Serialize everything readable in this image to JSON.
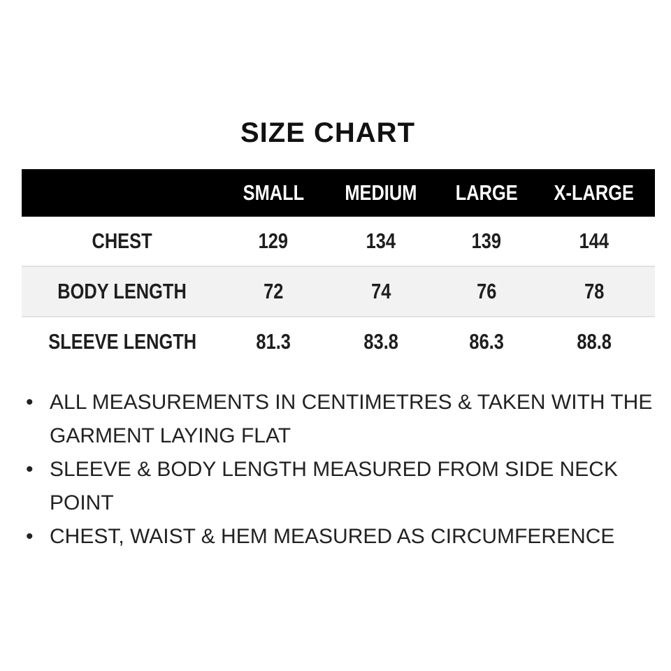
{
  "title": "SIZE CHART",
  "table": {
    "headers": [
      "",
      "SMALL",
      "MEDIUM",
      "LARGE",
      "X-LARGE"
    ],
    "rows": [
      {
        "label": "CHEST",
        "values": [
          "129",
          "134",
          "139",
          "144"
        ]
      },
      {
        "label": "BODY LENGTH",
        "values": [
          "72",
          "74",
          "76",
          "78"
        ]
      },
      {
        "label": "SLEEVE LENGTH",
        "values": [
          "81.3",
          "83.8",
          "86.3",
          "88.8"
        ]
      }
    ]
  },
  "notes": {
    "bullet": "•",
    "items": [
      "ALL MEASUREMENTS IN CENTIMETRES & TAKEN WITH THE GARMENT LAYING FLAT",
      "SLEEVE & BODY LENGTH MEASURED FROM SIDE NECK POINT",
      "CHEST, WAIST & HEM MEASURED AS CIRCUMFERENCE"
    ]
  },
  "colors": {
    "header_bg": "#000000",
    "alt_row_bg": "#f2f2f2"
  }
}
